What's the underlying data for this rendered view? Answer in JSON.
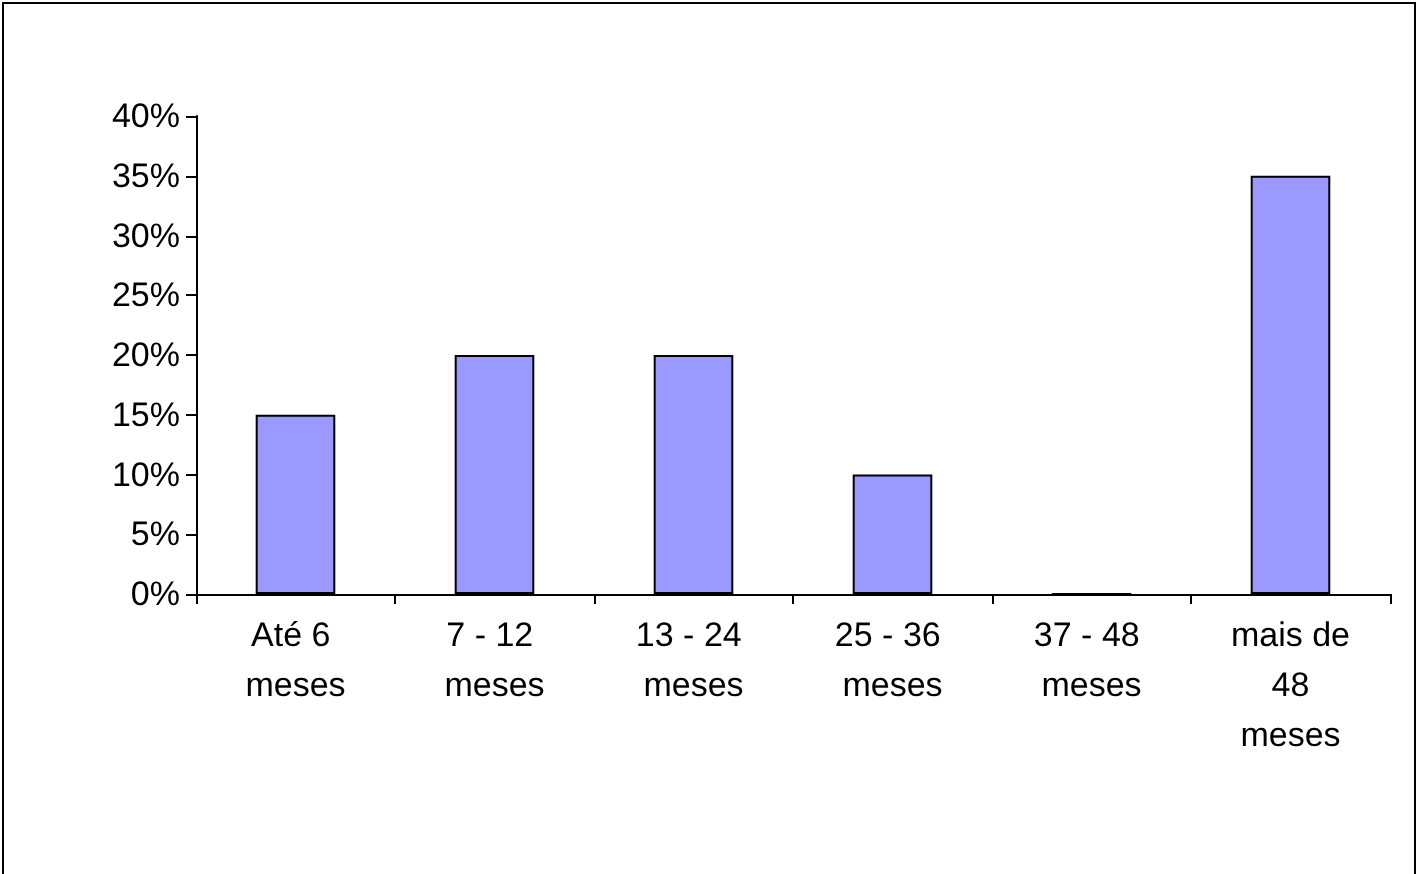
{
  "chart_data": {
    "type": "bar",
    "categories": [
      "Até 6 meses",
      "7 - 12 meses",
      "13 - 24 meses",
      "25 - 36 meses",
      "37 - 48 meses",
      "mais de 48 meses"
    ],
    "values": [
      15,
      20,
      20,
      10,
      0,
      35
    ],
    "color": "#9999ff",
    "ylim": [
      0,
      40
    ],
    "yticks": [
      {
        "value": 0,
        "label": "0%"
      },
      {
        "value": 5,
        "label": "5%"
      },
      {
        "value": 10,
        "label": "10%"
      },
      {
        "value": 15,
        "label": "15%"
      },
      {
        "value": 20,
        "label": "20%"
      },
      {
        "value": 25,
        "label": "25%"
      },
      {
        "value": 30,
        "label": "30%"
      },
      {
        "value": 35,
        "label": "35%"
      },
      {
        "value": 40,
        "label": "40%"
      }
    ],
    "grid": false
  }
}
